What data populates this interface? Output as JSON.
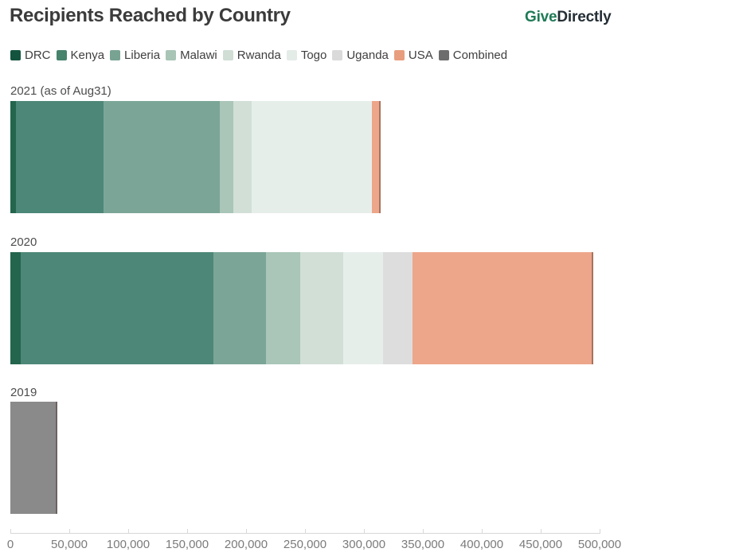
{
  "header": {
    "title": "Recipients Reached by Country",
    "logo": {
      "give": "Give",
      "directly": "Directly",
      "give_color": "#1f7a56",
      "directly_color": "#242e35"
    }
  },
  "legend": {
    "items": [
      {
        "label": "DRC",
        "color": "#14543e",
        "bar_color": "#24654d"
      },
      {
        "label": "Kenya",
        "color": "#47836d",
        "bar_color": "#4d8777"
      },
      {
        "label": "Liberia",
        "color": "#78a393",
        "bar_color": "#7ba697"
      },
      {
        "label": "Malawi",
        "color": "#a8c5b6",
        "bar_color": "#a9c6b8"
      },
      {
        "label": "Rwanda",
        "color": "#d0ded5",
        "bar_color": "#d1dfd7"
      },
      {
        "label": "Togo",
        "color": "#e4ece8",
        "bar_color": "#e6eeea"
      },
      {
        "label": "Uganda",
        "color": "#d9dad9",
        "bar_color": "#dcdddc"
      },
      {
        "label": "USA",
        "color": "#e89d7e",
        "bar_color": "#eda68a"
      },
      {
        "label": "Combined",
        "color": "#6d6d6d",
        "bar_color": "#8a8a8a"
      }
    ]
  },
  "chart_data": {
    "type": "bar",
    "orientation": "horizontal",
    "stacked": true,
    "title": "Recipients Reached by Country",
    "unit": "recipients reached",
    "categories": [
      "2021 (as of Aug31)",
      "2020",
      "2019"
    ],
    "series": [
      {
        "name": "DRC",
        "values": [
          5000,
          9000,
          0
        ]
      },
      {
        "name": "Kenya",
        "values": [
          74000,
          163000,
          0
        ]
      },
      {
        "name": "Liberia",
        "values": [
          99000,
          45000,
          0
        ]
      },
      {
        "name": "Malawi",
        "values": [
          11000,
          29000,
          0
        ]
      },
      {
        "name": "Rwanda",
        "values": [
          16000,
          36500,
          0
        ]
      },
      {
        "name": "Togo",
        "values": [
          102000,
          34000,
          0
        ]
      },
      {
        "name": "Uganda",
        "values": [
          0,
          25000,
          0
        ]
      },
      {
        "name": "USA",
        "values": [
          7000,
          153000,
          0
        ]
      },
      {
        "name": "Combined",
        "values": [
          0,
          0,
          40000
        ]
      }
    ],
    "totals_estimated": {
      "2021": 314000,
      "2020": 494500,
      "2019": 40000
    },
    "xlim": [
      0,
      500000
    ],
    "x_ticks": {
      "values": [
        0,
        50000,
        100000,
        150000,
        200000,
        250000,
        300000,
        350000,
        400000,
        450000,
        500000
      ],
      "labels": [
        "0",
        "50,000",
        "100,000",
        "150,000",
        "200,000",
        "250,000",
        "300,000",
        "350,000",
        "400,000",
        "450,000",
        "500,000"
      ]
    },
    "grid": false,
    "legend_position": "top",
    "x_axis_position": "bottom"
  }
}
